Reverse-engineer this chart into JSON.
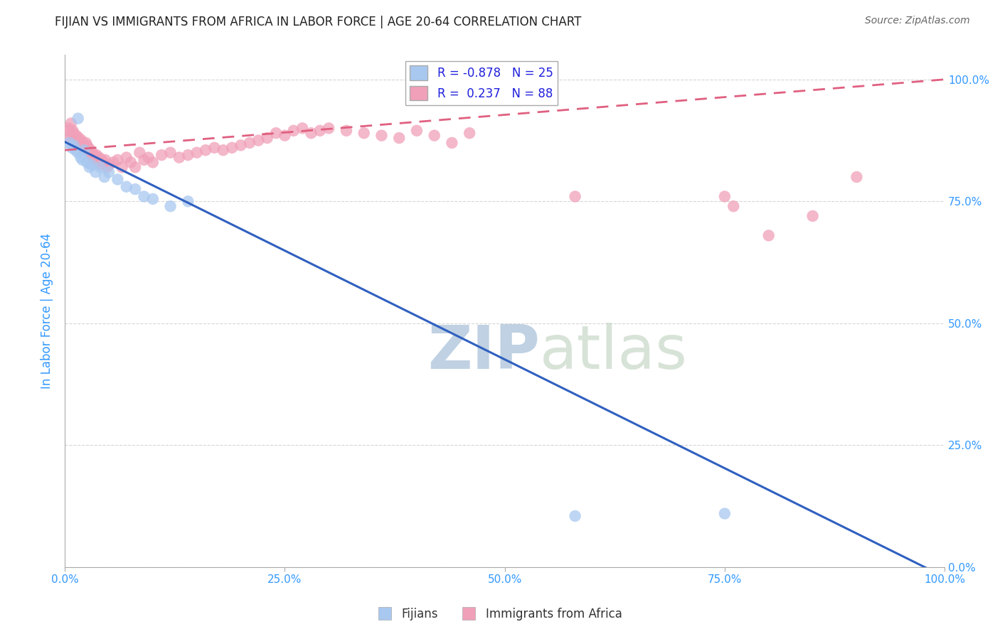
{
  "title": "FIJIAN VS IMMIGRANTS FROM AFRICA IN LABOR FORCE | AGE 20-64 CORRELATION CHART",
  "source": "Source: ZipAtlas.com",
  "ylabel": "In Labor Force | Age 20-64",
  "fijian_r": -0.878,
  "fijian_n": 25,
  "africa_r": 0.237,
  "africa_n": 88,
  "fijian_color": "#A8C8F0",
  "africa_color": "#F0A0B8",
  "fijian_line_color": "#3060C0",
  "africa_line_color": "#E06080",
  "background_color": "#ffffff",
  "grid_color": "#cccccc",
  "title_color": "#222222",
  "source_color": "#666666",
  "axis_tick_color": "#3399FF",
  "watermark_color": "#C8D8EE",
  "fijian_x": [
    0.005,
    0.008,
    0.01,
    0.012,
    0.015,
    0.018,
    0.02,
    0.022,
    0.025,
    0.028,
    0.03,
    0.035,
    0.04,
    0.045,
    0.05,
    0.06,
    0.07,
    0.08,
    0.09,
    0.1,
    0.12,
    0.14,
    0.58,
    0.75,
    0.015
  ],
  "fijian_y": [
    0.87,
    0.86,
    0.865,
    0.855,
    0.85,
    0.84,
    0.835,
    0.855,
    0.83,
    0.82,
    0.825,
    0.81,
    0.82,
    0.8,
    0.81,
    0.795,
    0.78,
    0.775,
    0.76,
    0.755,
    0.74,
    0.75,
    0.105,
    0.11,
    0.92
  ],
  "africa_x": [
    0.004,
    0.005,
    0.006,
    0.007,
    0.008,
    0.009,
    0.01,
    0.01,
    0.011,
    0.012,
    0.013,
    0.014,
    0.015,
    0.016,
    0.017,
    0.018,
    0.019,
    0.02,
    0.02,
    0.021,
    0.022,
    0.023,
    0.024,
    0.025,
    0.026,
    0.027,
    0.028,
    0.029,
    0.03,
    0.031,
    0.032,
    0.033,
    0.034,
    0.035,
    0.036,
    0.037,
    0.038,
    0.039,
    0.04,
    0.042,
    0.044,
    0.046,
    0.048,
    0.05,
    0.055,
    0.06,
    0.065,
    0.07,
    0.075,
    0.08,
    0.085,
    0.09,
    0.095,
    0.1,
    0.11,
    0.12,
    0.13,
    0.14,
    0.15,
    0.16,
    0.17,
    0.18,
    0.19,
    0.2,
    0.21,
    0.22,
    0.23,
    0.24,
    0.25,
    0.26,
    0.27,
    0.28,
    0.29,
    0.3,
    0.32,
    0.34,
    0.36,
    0.38,
    0.4,
    0.42,
    0.44,
    0.46,
    0.58,
    0.75,
    0.76,
    0.8,
    0.85,
    0.9
  ],
  "africa_y": [
    0.9,
    0.895,
    0.88,
    0.91,
    0.885,
    0.895,
    0.89,
    0.87,
    0.875,
    0.88,
    0.885,
    0.875,
    0.87,
    0.88,
    0.865,
    0.87,
    0.875,
    0.86,
    0.87,
    0.865,
    0.86,
    0.855,
    0.87,
    0.865,
    0.855,
    0.86,
    0.85,
    0.855,
    0.845,
    0.85,
    0.84,
    0.845,
    0.835,
    0.84,
    0.845,
    0.83,
    0.835,
    0.84,
    0.825,
    0.835,
    0.83,
    0.835,
    0.82,
    0.825,
    0.83,
    0.835,
    0.82,
    0.84,
    0.83,
    0.82,
    0.85,
    0.835,
    0.84,
    0.83,
    0.845,
    0.85,
    0.84,
    0.845,
    0.85,
    0.855,
    0.86,
    0.855,
    0.86,
    0.865,
    0.87,
    0.875,
    0.88,
    0.89,
    0.885,
    0.895,
    0.9,
    0.89,
    0.895,
    0.9,
    0.895,
    0.89,
    0.885,
    0.88,
    0.895,
    0.885,
    0.87,
    0.89,
    0.76,
    0.76,
    0.74,
    0.68,
    0.72,
    0.8
  ],
  "xlim": [
    0.0,
    1.0
  ],
  "ylim": [
    0.0,
    1.05
  ],
  "xticks": [
    0.0,
    0.25,
    0.5,
    0.75,
    1.0
  ],
  "xtick_labels": [
    "0.0%",
    "25.0%",
    "50.0%",
    "75.0%",
    "100.0%"
  ],
  "yticks_right": [
    0.0,
    0.25,
    0.5,
    0.75,
    1.0
  ],
  "ytick_labels_right": [
    "0.0%",
    "25.0%",
    "50.0%",
    "75.0%",
    "100.0%"
  ],
  "fijian_trend_start_y": 0.872,
  "fijian_trend_end_y": -0.02,
  "africa_trend_start_y": 0.855,
  "africa_trend_end_y": 1.0
}
